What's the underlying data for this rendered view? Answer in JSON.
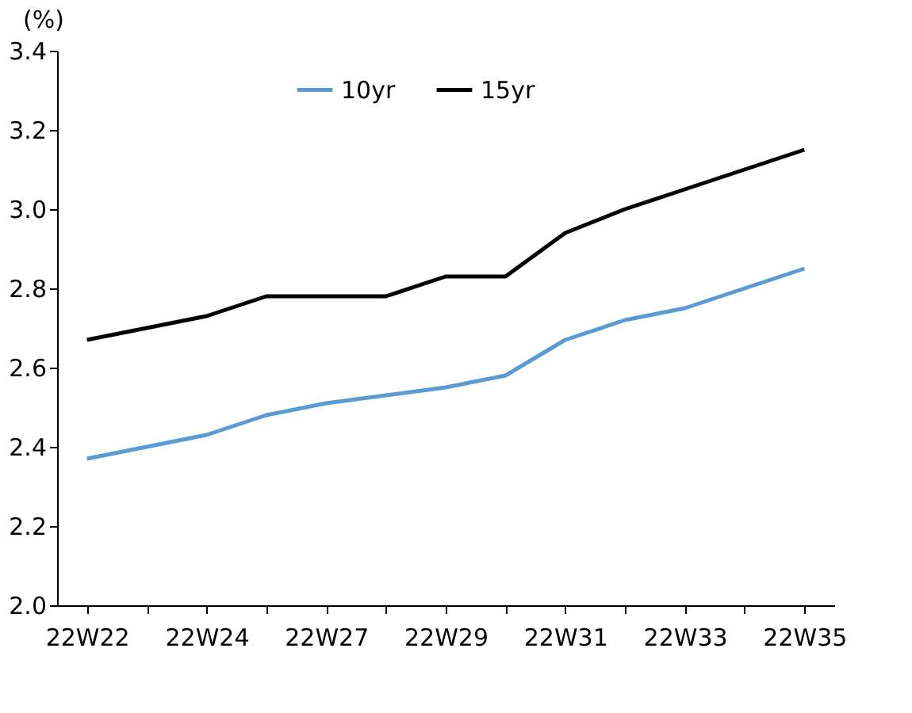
{
  "chart_data": {
    "type": "line",
    "ylabel": "(%)",
    "categories": [
      "22W22",
      null,
      "22W24",
      null,
      "22W27",
      null,
      "22W29",
      null,
      "22W31",
      null,
      "22W33",
      null,
      "22W35"
    ],
    "series": [
      {
        "name": "10yr",
        "color": "#5b9bd5",
        "values": [
          2.37,
          2.4,
          2.43,
          2.48,
          2.51,
          2.53,
          2.55,
          2.58,
          2.67,
          2.72,
          2.75,
          2.8,
          2.85
        ]
      },
      {
        "name": "15yr",
        "color": "#000000",
        "values": [
          2.67,
          2.7,
          2.73,
          2.78,
          2.78,
          2.78,
          2.83,
          2.83,
          2.94,
          3.0,
          3.05,
          3.1,
          3.15
        ]
      }
    ],
    "ylim": [
      2.0,
      3.4
    ],
    "yticks": [
      {
        "value": 2.0,
        "label": "2.0"
      },
      2.2,
      2.4,
      2.6,
      2.8,
      {
        "value": 3.0,
        "label": "3.0"
      },
      3.2,
      3.4
    ],
    "grid": false,
    "legend": "top",
    "marker": "none",
    "line_style": "solid"
  }
}
